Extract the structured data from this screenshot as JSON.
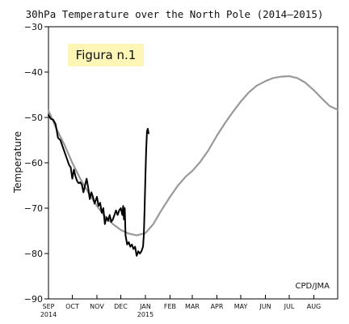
{
  "chart_data": {
    "type": "line",
    "title": "30hPa Temperature over the North Pole (2014–2015)",
    "ylabel": "Temperature",
    "xlabel": "",
    "ylim": [
      -90,
      -30
    ],
    "yticks": [
      -90,
      -80,
      -70,
      -60,
      -50,
      -40,
      -30
    ],
    "xlim": [
      "2014-09-01",
      "2015-08-31"
    ],
    "xticks": [
      {
        "date": "2014-09-01",
        "label": "SEP",
        "label2": "2014"
      },
      {
        "date": "2014-10-01",
        "label": "OCT",
        "label2": ""
      },
      {
        "date": "2014-11-01",
        "label": "NOV",
        "label2": ""
      },
      {
        "date": "2014-12-01",
        "label": "DEC",
        "label2": ""
      },
      {
        "date": "2015-01-01",
        "label": "JAN",
        "label2": "2015"
      },
      {
        "date": "2015-02-01",
        "label": "FEB",
        "label2": ""
      },
      {
        "date": "2015-03-01",
        "label": "MAR",
        "label2": ""
      },
      {
        "date": "2015-04-01",
        "label": "APR",
        "label2": ""
      },
      {
        "date": "2015-05-01",
        "label": "MAY",
        "label2": ""
      },
      {
        "date": "2015-06-01",
        "label": "JUN",
        "label2": ""
      },
      {
        "date": "2015-07-01",
        "label": "JUL",
        "label2": ""
      },
      {
        "date": "2015-08-01",
        "label": "AUG",
        "label2": ""
      }
    ],
    "series": [
      {
        "color": "#999999",
        "points": [
          [
            "2014-09-01",
            -48.5
          ],
          [
            "2014-09-11",
            -52.5
          ],
          [
            "2014-09-21",
            -56
          ],
          [
            "2014-10-01",
            -60
          ],
          [
            "2014-10-11",
            -63.5
          ],
          [
            "2014-10-21",
            -66.5
          ],
          [
            "2014-11-01",
            -69.5
          ],
          [
            "2014-11-11",
            -71.8
          ],
          [
            "2014-11-21",
            -73.5
          ],
          [
            "2014-12-01",
            -74.8
          ],
          [
            "2014-12-11",
            -75.6
          ],
          [
            "2014-12-21",
            -76
          ],
          [
            "2015-01-01",
            -75.5
          ],
          [
            "2015-01-11",
            -73.5
          ],
          [
            "2015-01-21",
            -70.5
          ],
          [
            "2015-02-01",
            -67.5
          ],
          [
            "2015-02-11",
            -65
          ],
          [
            "2015-02-21",
            -63
          ],
          [
            "2015-03-01",
            -61.8
          ],
          [
            "2015-03-11",
            -59.8
          ],
          [
            "2015-03-21",
            -57.3
          ],
          [
            "2015-04-01",
            -54
          ],
          [
            "2015-04-11",
            -51.3
          ],
          [
            "2015-04-21",
            -48.8
          ],
          [
            "2015-05-01",
            -46.5
          ],
          [
            "2015-05-11",
            -44.5
          ],
          [
            "2015-05-21",
            -43
          ],
          [
            "2015-06-01",
            -42
          ],
          [
            "2015-06-11",
            -41.3
          ],
          [
            "2015-06-21",
            -41
          ],
          [
            "2015-07-01",
            -40.9
          ],
          [
            "2015-07-11",
            -41.3
          ],
          [
            "2015-07-21",
            -42.3
          ],
          [
            "2015-08-01",
            -44
          ],
          [
            "2015-08-11",
            -45.8
          ],
          [
            "2015-08-21",
            -47.5
          ],
          [
            "2015-08-31",
            -48.3
          ]
        ]
      },
      {
        "color": "#000000",
        "points": [
          [
            "2014-09-01",
            -49.5
          ],
          [
            "2014-09-04",
            -50.3
          ],
          [
            "2014-09-07",
            -50.5
          ],
          [
            "2014-09-10",
            -51.5
          ],
          [
            "2014-09-13",
            -54.5
          ],
          [
            "2014-09-16",
            -55
          ],
          [
            "2014-09-19",
            -56.5
          ],
          [
            "2014-09-22",
            -58
          ],
          [
            "2014-09-25",
            -59.5
          ],
          [
            "2014-09-27",
            -60.5
          ],
          [
            "2014-09-29",
            -61
          ],
          [
            "2014-10-01",
            -63.5
          ],
          [
            "2014-10-03",
            -61.5
          ],
          [
            "2014-10-05",
            -63
          ],
          [
            "2014-10-07",
            -64
          ],
          [
            "2014-10-09",
            -64.5
          ],
          [
            "2014-10-11",
            -64.3
          ],
          [
            "2014-10-13",
            -64.8
          ],
          [
            "2014-10-15",
            -66.5
          ],
          [
            "2014-10-17",
            -65
          ],
          [
            "2014-10-19",
            -63.5
          ],
          [
            "2014-10-21",
            -65.5
          ],
          [
            "2014-10-23",
            -68
          ],
          [
            "2014-10-25",
            -66.5
          ],
          [
            "2014-10-27",
            -67.5
          ],
          [
            "2014-10-29",
            -69
          ],
          [
            "2014-11-01",
            -67.5
          ],
          [
            "2014-11-03",
            -69.5
          ],
          [
            "2014-11-05",
            -68.8
          ],
          [
            "2014-11-07",
            -71
          ],
          [
            "2014-11-09",
            -70
          ],
          [
            "2014-11-11",
            -73.5
          ],
          [
            "2014-11-13",
            -72
          ],
          [
            "2014-11-15",
            -72.8
          ],
          [
            "2014-11-17",
            -71.5
          ],
          [
            "2014-11-19",
            -73
          ],
          [
            "2014-11-21",
            -72.5
          ],
          [
            "2014-11-23",
            -71.5
          ],
          [
            "2014-11-25",
            -70.5
          ],
          [
            "2014-11-27",
            -71.5
          ],
          [
            "2014-11-29",
            -70.5
          ],
          [
            "2014-12-01",
            -70
          ],
          [
            "2014-12-03",
            -71.5
          ],
          [
            "2014-12-04",
            -69.5
          ],
          [
            "2014-12-05",
            -72.5
          ],
          [
            "2014-12-06",
            -70
          ],
          [
            "2014-12-07",
            -76
          ],
          [
            "2014-12-09",
            -78
          ],
          [
            "2014-12-11",
            -77.5
          ],
          [
            "2014-12-13",
            -78.5
          ],
          [
            "2014-12-15",
            -78
          ],
          [
            "2014-12-17",
            -79
          ],
          [
            "2014-12-19",
            -78.5
          ],
          [
            "2014-12-21",
            -80.5
          ],
          [
            "2014-12-23",
            -79.5
          ],
          [
            "2014-12-25",
            -80
          ],
          [
            "2014-12-27",
            -79.5
          ],
          [
            "2014-12-29",
            -78.5
          ],
          [
            "2014-12-30",
            -76
          ],
          [
            "2014-12-31",
            -70
          ],
          [
            "2015-01-01",
            -63
          ],
          [
            "2015-01-02",
            -57
          ],
          [
            "2015-01-03",
            -53
          ],
          [
            "2015-01-04",
            -52.5
          ],
          [
            "2015-01-05",
            -53.5
          ]
        ]
      }
    ]
  },
  "labels": {
    "figura": "Figura n.1",
    "credit": "CPD/JMA"
  },
  "colors": {
    "figura_bg": "#fdf6b6",
    "frame": "#000000"
  }
}
